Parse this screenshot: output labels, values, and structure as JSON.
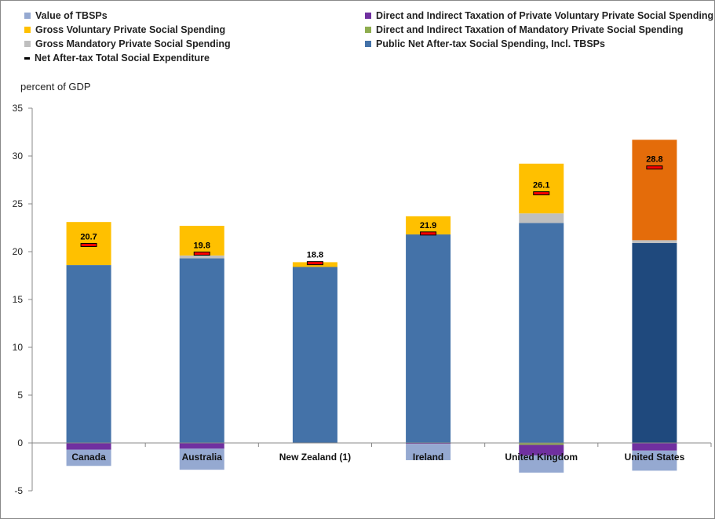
{
  "chart_data": {
    "type": "bar",
    "stacked": true,
    "ylabel": "percent of GDP",
    "ylim": [
      -5,
      35
    ],
    "yticks": [
      -5,
      0,
      5,
      10,
      15,
      20,
      25,
      30,
      35
    ],
    "categories": [
      "Canada",
      "Australia",
      "New Zealand (1)",
      "Ireland",
      "United Kingdom",
      "United States"
    ],
    "series": [
      {
        "name": "Value of TBSPs",
        "color": "#95A9D1",
        "values": [
          -1.7,
          -2.2,
          0,
          -1.7,
          -1.8,
          -2.1
        ]
      },
      {
        "name": "Direct and Indirect Taxation of Private Voluntary Private Social Spending",
        "color": "#7030A0",
        "values": [
          -0.7,
          -0.6,
          0,
          -0.1,
          -1.1,
          -0.8
        ]
      },
      {
        "name": "Gross Voluntary Private Social Spending",
        "color": "#FFC000",
        "values": [
          4.5,
          3.1,
          0.5,
          1.9,
          5.2,
          10.5
        ]
      },
      {
        "name": "Direct and Indirect Taxation of Mandatory Private Social Spending",
        "color": "#8EAD4F",
        "values": [
          0,
          0,
          0,
          0,
          -0.2,
          0
        ]
      },
      {
        "name": "Gross Mandatory Private Social Spending",
        "color": "#BFBFBF",
        "values": [
          0,
          0.3,
          0,
          0,
          1.0,
          0.3
        ]
      },
      {
        "name": "Public Net After-tax Social Spending, Incl. TBSPs",
        "color": "#4472A8",
        "values": [
          18.6,
          19.3,
          18.4,
          21.8,
          23.0,
          20.9
        ]
      }
    ],
    "highlight": {
      "category": "United States",
      "public_color": "#1F497D",
      "voluntary_color": "#E46C0A"
    },
    "net_total": {
      "name": "Net After-tax Total Social Expenditure",
      "values": [
        20.7,
        19.8,
        18.8,
        21.9,
        26.1,
        28.8
      ],
      "labels": [
        "20.7",
        "19.8",
        "18.8",
        "21.9",
        "26.1",
        "28.8"
      ]
    },
    "legend_order": [
      0,
      1,
      2,
      3,
      4,
      5,
      6
    ]
  }
}
